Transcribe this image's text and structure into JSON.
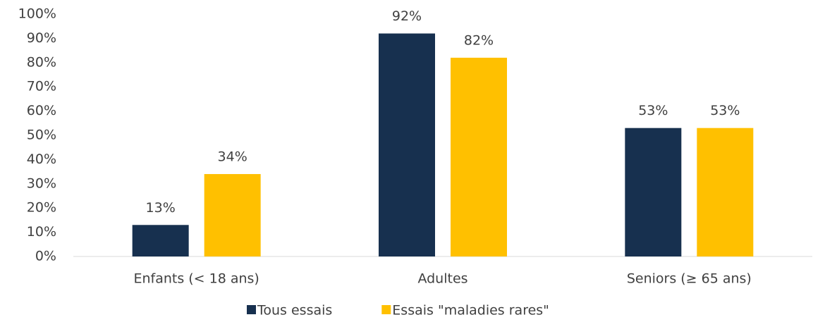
{
  "chart_data": {
    "type": "bar",
    "categories": [
      "Enfants (< 18 ans)",
      "Adultes",
      "Seniors (≥ 65 ans)"
    ],
    "series": [
      {
        "name": "Tous essais",
        "color": "#17304f",
        "values": [
          13,
          92,
          53
        ],
        "value_labels": [
          "13%",
          "92%",
          "53%"
        ]
      },
      {
        "name": "Essais \"maladies rares\"",
        "color": "#ffc000",
        "values": [
          34,
          82,
          53
        ],
        "value_labels": [
          "34%",
          "82%",
          "53%"
        ]
      }
    ],
    "ylim": [
      0,
      100
    ],
    "yticks": [
      {
        "value": 0,
        "label": "0%"
      },
      {
        "value": 10,
        "label": "10%"
      },
      {
        "value": 20,
        "label": "20%"
      },
      {
        "value": 30,
        "label": "30%"
      },
      {
        "value": 40,
        "label": "40%"
      },
      {
        "value": 50,
        "label": "50%"
      },
      {
        "value": 60,
        "label": "60%"
      },
      {
        "value": 70,
        "label": "70%"
      },
      {
        "value": 80,
        "label": "80%"
      },
      {
        "value": 90,
        "label": "90%"
      },
      {
        "value": 100,
        "label": "100%"
      }
    ],
    "grid": false,
    "legend": "bottom"
  }
}
